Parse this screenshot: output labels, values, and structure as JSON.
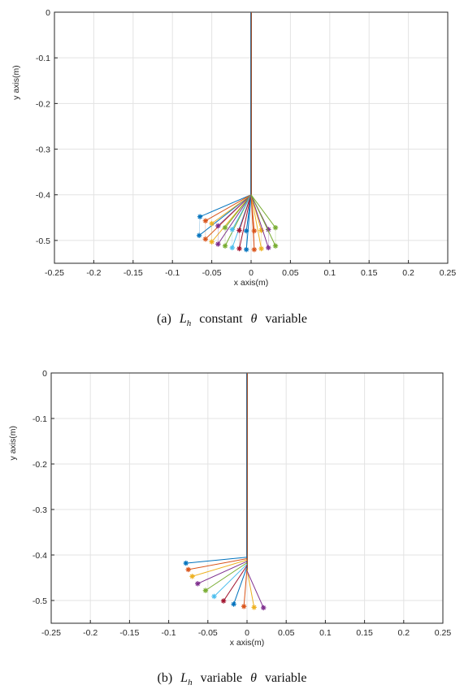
{
  "chart_data": [
    {
      "type": "line",
      "xlabel": "x axis(m)",
      "ylabel": "y axis(m)",
      "xlim": [
        -0.25,
        0.25
      ],
      "ylim": [
        -0.55,
        0
      ],
      "xticks": [
        -0.25,
        -0.2,
        -0.15,
        -0.1,
        -0.05,
        0,
        0.05,
        0.1,
        0.15,
        0.2,
        0.25
      ],
      "xtick_labels": [
        "-0.25",
        "-0.2",
        "-0.15",
        "-0.1",
        "-0.05",
        "0",
        "0.05",
        "0.1",
        "0.15",
        "0.2",
        "0.25"
      ],
      "yticks": [
        0,
        -0.1,
        -0.2,
        -0.3,
        -0.4,
        -0.5
      ],
      "ytick_labels": [
        "0",
        "-0.1",
        "-0.2",
        "-0.3",
        "-0.4",
        "-0.5"
      ],
      "grid": true,
      "caption": {
        "label": "(a)",
        "symbol": "L",
        "subscript": "h",
        "word1": "constant",
        "theta": "θ",
        "word2": "variable"
      },
      "rope": {
        "top": [
          0,
          0
        ],
        "joint": [
          0,
          -0.4
        ]
      },
      "series": [
        {
          "values": [
            [
              -0.065,
              -0.448
            ],
            [
              -0.066,
              -0.489
            ]
          ]
        },
        {
          "values": [
            [
              -0.058,
              -0.457
            ],
            [
              -0.058,
              -0.497
            ]
          ]
        },
        {
          "values": [
            [
              -0.05,
              -0.463
            ],
            [
              -0.05,
              -0.503
            ]
          ]
        },
        {
          "values": [
            [
              -0.042,
              -0.468
            ],
            [
              -0.042,
              -0.508
            ]
          ]
        },
        {
          "values": [
            [
              -0.033,
              -0.472
            ],
            [
              -0.033,
              -0.512
            ]
          ]
        },
        {
          "values": [
            [
              -0.024,
              -0.476
            ],
            [
              -0.024,
              -0.516
            ]
          ]
        },
        {
          "values": [
            [
              -0.015,
              -0.478
            ],
            [
              -0.015,
              -0.518
            ]
          ]
        },
        {
          "values": [
            [
              -0.006,
              -0.479
            ],
            [
              -0.006,
              -0.52
            ]
          ]
        },
        {
          "values": [
            [
              0.004,
              -0.479
            ],
            [
              0.004,
              -0.52
            ]
          ]
        },
        {
          "values": [
            [
              0.013,
              -0.478
            ],
            [
              0.013,
              -0.518
            ]
          ]
        },
        {
          "values": [
            [
              0.022,
              -0.476
            ],
            [
              0.022,
              -0.516
            ]
          ]
        },
        {
          "values": [
            [
              0.031,
              -0.472
            ],
            [
              0.031,
              -0.512
            ]
          ]
        }
      ]
    },
    {
      "type": "line",
      "xlabel": "x axis(m)",
      "ylabel": "y axis(m)",
      "xlim": [
        -0.25,
        0.25
      ],
      "ylim": [
        -0.55,
        0
      ],
      "xticks": [
        -0.25,
        -0.2,
        -0.15,
        -0.1,
        -0.05,
        0,
        0.05,
        0.1,
        0.15,
        0.2,
        0.25
      ],
      "xtick_labels": [
        "-0.25",
        "-0.2",
        "-0.15",
        "-0.1",
        "-0.05",
        "0",
        "0.05",
        "0.1",
        "0.15",
        "0.2",
        "0.25"
      ],
      "yticks": [
        0,
        -0.1,
        -0.2,
        -0.3,
        -0.4,
        -0.5
      ],
      "ytick_labels": [
        "0",
        "-0.1",
        "-0.2",
        "-0.3",
        "-0.4",
        "-0.5"
      ],
      "grid": true,
      "caption": {
        "label": "(b)",
        "symbol": "L",
        "subscript": "h",
        "word1": "variable",
        "theta": "θ",
        "word2": "variable"
      },
      "rope": {
        "top": [
          0,
          0
        ]
      },
      "series": [
        {
          "values": [
            [
              0,
              -0.405
            ],
            [
              -0.078,
              -0.418
            ]
          ]
        },
        {
          "values": [
            [
              0,
              -0.408
            ],
            [
              -0.075,
              -0.432
            ]
          ]
        },
        {
          "values": [
            [
              0,
              -0.411
            ],
            [
              -0.07,
              -0.447
            ]
          ]
        },
        {
          "values": [
            [
              0,
              -0.414
            ],
            [
              -0.063,
              -0.463
            ]
          ]
        },
        {
          "values": [
            [
              0,
              -0.417
            ],
            [
              -0.053,
              -0.478
            ]
          ]
        },
        {
          "values": [
            [
              0,
              -0.42
            ],
            [
              -0.042,
              -0.491
            ]
          ]
        },
        {
          "values": [
            [
              0,
              -0.423
            ],
            [
              -0.03,
              -0.501
            ]
          ]
        },
        {
          "values": [
            [
              0,
              -0.426
            ],
            [
              -0.017,
              -0.508
            ]
          ]
        },
        {
          "values": [
            [
              0,
              -0.429
            ],
            [
              -0.004,
              -0.513
            ]
          ]
        },
        {
          "values": [
            [
              0,
              -0.432
            ],
            [
              0.009,
              -0.515
            ]
          ]
        },
        {
          "values": [
            [
              0,
              -0.435
            ],
            [
              0.021,
              -0.516
            ]
          ]
        }
      ]
    }
  ],
  "colors": [
    "#0072bd",
    "#d95319",
    "#edb120",
    "#7e2f8e",
    "#77ac30",
    "#4dbeee",
    "#a2142f"
  ],
  "rope_colors": [
    "#0072bd",
    "#a0522d"
  ]
}
